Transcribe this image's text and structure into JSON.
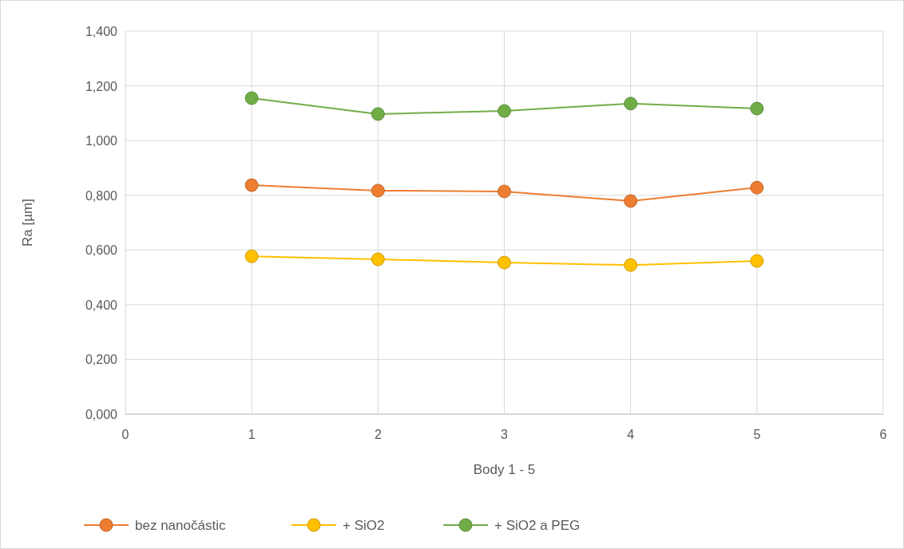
{
  "chart_data": {
    "type": "line",
    "xlabel": "Body 1 - 5",
    "ylabel": "Ra [µm]",
    "x": [
      1,
      2,
      3,
      4,
      5
    ],
    "series": [
      {
        "name": "bez nanočástic",
        "color": "#ed7d31",
        "values": [
          0.837,
          0.817,
          0.814,
          0.779,
          0.828
        ]
      },
      {
        "name": "+ SiO2",
        "color": "#ffc000",
        "values": [
          0.577,
          0.566,
          0.554,
          0.545,
          0.56
        ]
      },
      {
        "name": "+ SiO2 a PEG",
        "color": "#70ad47",
        "values": [
          1.155,
          1.097,
          1.108,
          1.135,
          1.117
        ]
      }
    ],
    "xlim": [
      0,
      6
    ],
    "xticks": [
      0,
      1,
      2,
      3,
      4,
      5,
      6
    ],
    "ylim": [
      0,
      1.4
    ],
    "yticks": [
      {
        "value": 0,
        "label": "0,000"
      },
      {
        "value": 0.2,
        "label": "0,200"
      },
      {
        "value": 0.4,
        "label": "0,400"
      },
      {
        "value": 0.6,
        "label": "0,600"
      },
      {
        "value": 0.8,
        "label": "0,800"
      },
      {
        "value": 1,
        "label": "1,000"
      },
      {
        "value": 1.2,
        "label": "1,200"
      },
      {
        "value": 1.4,
        "label": "1,400"
      }
    ],
    "grid": true,
    "legend": "bottom",
    "marker": "circle",
    "line_style": "solid"
  }
}
